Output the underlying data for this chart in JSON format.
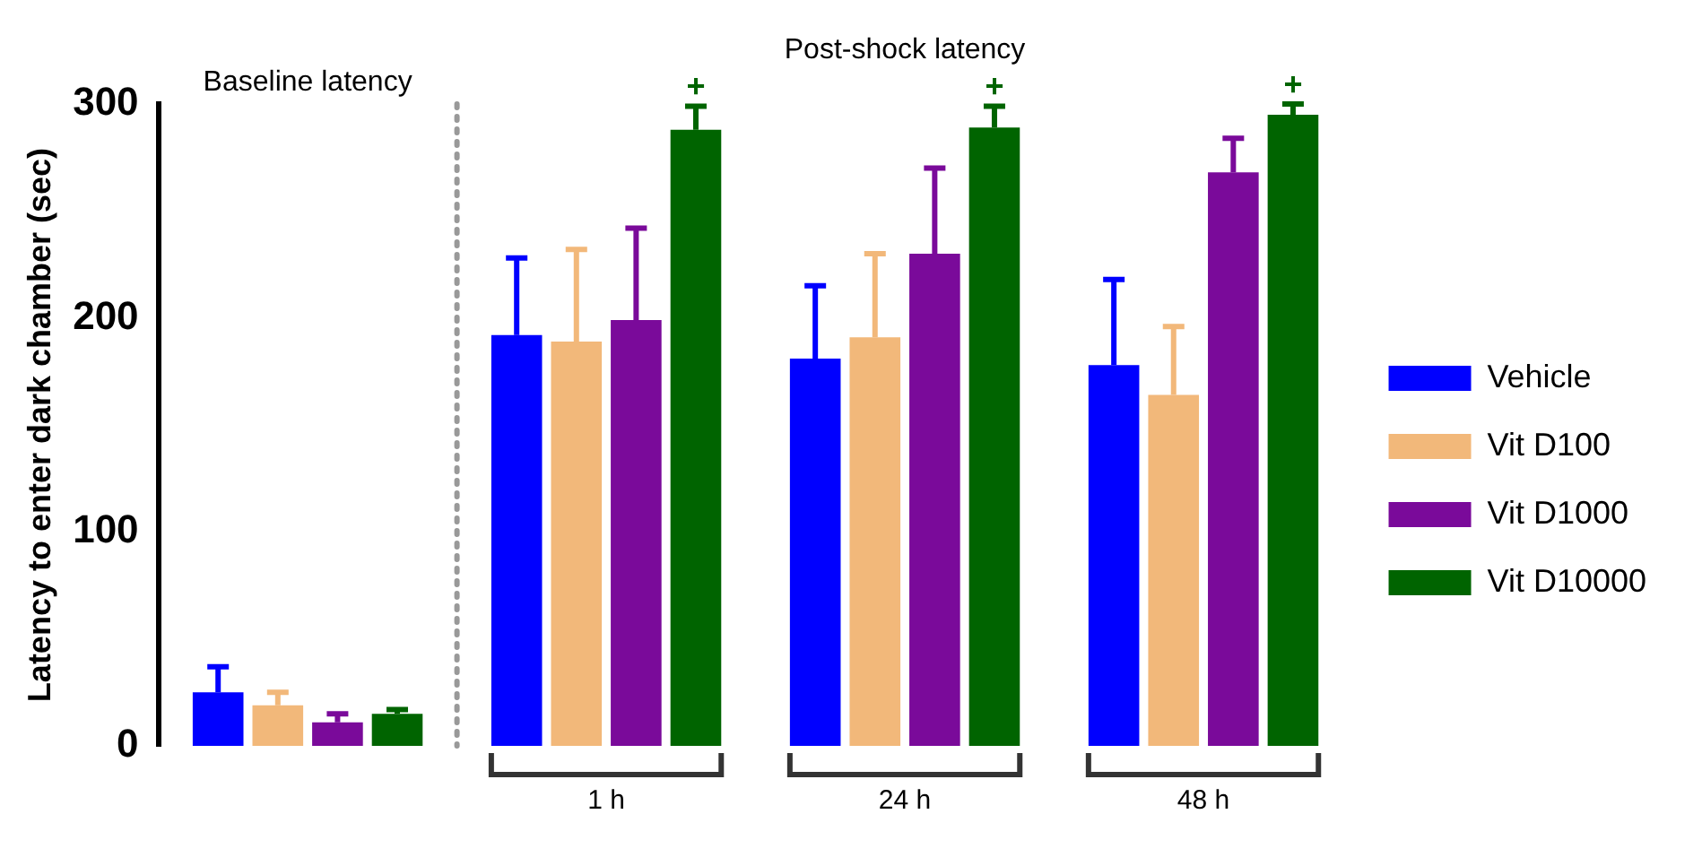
{
  "chart_data": {
    "type": "bar",
    "ylabel": "Latency to enter dark chamber (sec)",
    "categories": [
      null,
      "1 h",
      "24 h",
      "48 h"
    ],
    "series": [
      {
        "name": "Vehicle",
        "color": "#0000ff",
        "values": [
          25,
          192,
          181,
          178
        ],
        "errors": [
          [
            25,
            37
          ],
          [
            192,
            228
          ],
          [
            181,
            215
          ],
          [
            178,
            218
          ]
        ]
      },
      {
        "name": "Vit D100",
        "color": "#f2b87a",
        "values": [
          19,
          189,
          191,
          164
        ],
        "errors": [
          [
            19,
            25
          ],
          [
            189,
            232
          ],
          [
            191,
            230
          ],
          [
            164,
            196
          ]
        ]
      },
      {
        "name": "Vit D1000",
        "color": "#7a0a9a",
        "values": [
          11,
          199,
          230,
          268
        ],
        "errors": [
          [
            11,
            15
          ],
          [
            199,
            242
          ],
          [
            230,
            270
          ],
          [
            268,
            284
          ]
        ]
      },
      {
        "name": "Vit D10000",
        "color": "#006400",
        "values": [
          15,
          288,
          289,
          295
        ],
        "errors": [
          [
            15,
            17
          ],
          [
            288,
            299
          ],
          [
            289,
            299
          ],
          [
            295,
            300
          ]
        ]
      }
    ],
    "ylim": [
      0,
      300
    ],
    "yticks": [
      0,
      100,
      200,
      300
    ],
    "grid": false,
    "legend": "right",
    "annotations": [
      "Baseline latency",
      "Post-shock latency",
      "+",
      "+",
      "+"
    ]
  }
}
